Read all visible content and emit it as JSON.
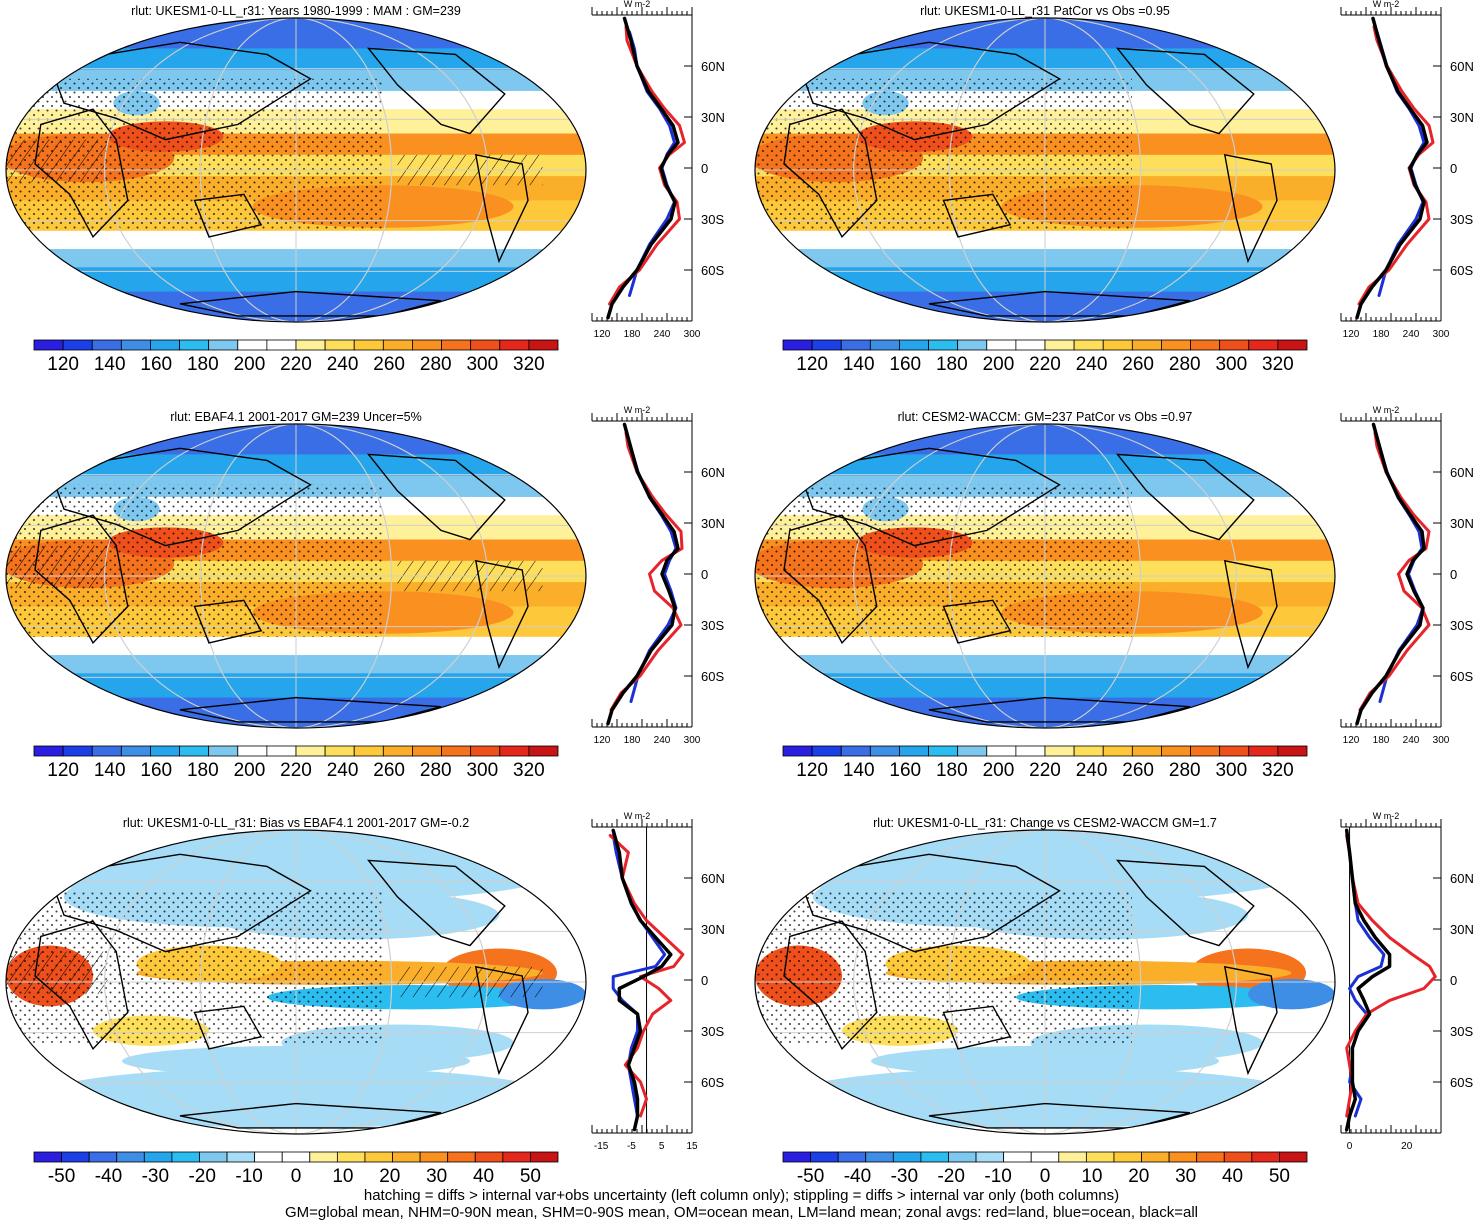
{
  "colors": {
    "warm_scale": [
      "#2a1fe0",
      "#1d3fe8",
      "#3a6ee6",
      "#3f8ee6",
      "#25a5ec",
      "#2bbcf0",
      "#7ec8f0",
      "#ffffff",
      "#ffffff",
      "#fff09a",
      "#fedf5c",
      "#fdc83a",
      "#fbae2a",
      "#f99020",
      "#f4731c",
      "#ee4f1b",
      "#e4281b",
      "#c81414"
    ],
    "diff_scale": [
      "#2a1fe0",
      "#1d3fe8",
      "#3a6ee6",
      "#3f8ee6",
      "#25a5ec",
      "#2bbcf0",
      "#7ec8f0",
      "#a6dcf5",
      "#ffffff",
      "#ffffff",
      "#fff09a",
      "#fedf5c",
      "#fdc83a",
      "#fbae2a",
      "#f99020",
      "#f4731c",
      "#ee4f1b",
      "#e4281b",
      "#c81414"
    ],
    "land": "#e8242b",
    "ocean": "#1a2fd6",
    "all": "#000000"
  },
  "footer": {
    "line1": "hatching = diffs > internal var+obs uncertainty (left column only); stippling = diffs > internal var only (both columns)",
    "line2": "GM=global mean, NHM=0-90N mean, SHM=0-90S mean, OM=ocean mean, LM=land mean; zonal avgs: red=land, blue=ocean, black=all"
  },
  "chart_data": [
    {
      "type": "heatmap",
      "title": "rlut: UKESM1-0-LL_r31: Years 1980-1999 : MAM : GM=239",
      "colorbar_ticks": [
        "120",
        "140",
        "160",
        "180",
        "200",
        "220",
        "240",
        "260",
        "280",
        "300",
        "320"
      ],
      "zonal_panel": {
        "unit": "W m-2",
        "x_ticks": [
          "120",
          "180",
          "240",
          "300"
        ],
        "xlim": [
          100,
          300
        ],
        "lat_ticks": [
          "60N",
          "30N",
          "0",
          "30S",
          "60S"
        ],
        "series": [
          {
            "color": "ocean",
            "lat": [
              80,
              70,
              60,
              45,
              35,
              25,
              15,
              8,
              0,
              -10,
              -20,
              -30,
              -45,
              -60,
              -75
            ],
            "values": [
              175,
              185,
              190,
              210,
              235,
              255,
              265,
              250,
              240,
              250,
              265,
              250,
              215,
              190,
              175
            ]
          },
          {
            "color": "land",
            "lat": [
              83,
              75,
              60,
              45,
              35,
              25,
              15,
              8,
              0,
              -10,
              -20,
              -30,
              -45,
              -60,
              -70,
              -80
            ],
            "values": [
              168,
              170,
              190,
              220,
              245,
              275,
              285,
              255,
              235,
              245,
              270,
              275,
              230,
              195,
              155,
              135
            ]
          },
          {
            "color": "all",
            "lat": [
              88,
              75,
              60,
              45,
              35,
              25,
              15,
              8,
              0,
              -10,
              -20,
              -30,
              -45,
              -60,
              -70,
              -80,
              -88
            ],
            "values": [
              165,
              178,
              190,
              213,
              238,
              262,
              272,
              252,
              238,
              248,
              266,
              258,
              218,
              190,
              162,
              140,
              132
            ]
          }
        ]
      }
    },
    {
      "type": "heatmap",
      "title": "rlut: UKESM1-0-LL_r31 PatCor vs Obs =0.95",
      "colorbar_ticks": [
        "120",
        "140",
        "160",
        "180",
        "200",
        "220",
        "240",
        "260",
        "280",
        "300",
        "320"
      ],
      "zonal_panel": {
        "unit": "W m-2",
        "x_ticks": [
          "120",
          "180",
          "240",
          "300"
        ],
        "xlim": [
          100,
          300
        ],
        "lat_ticks": [
          "60N",
          "30N",
          "0",
          "30S",
          "60S"
        ],
        "series": [
          {
            "color": "ocean",
            "lat": [
              80,
              70,
              60,
              45,
              35,
              25,
              15,
              8,
              0,
              -10,
              -20,
              -30,
              -45,
              -60,
              -75
            ],
            "values": [
              172,
              182,
              192,
              212,
              236,
              256,
              266,
              252,
              240,
              250,
              264,
              250,
              214,
              190,
              176
            ]
          },
          {
            "color": "land",
            "lat": [
              83,
              75,
              60,
              45,
              35,
              25,
              15,
              8,
              0,
              -10,
              -20,
              -30,
              -45,
              -60,
              -70,
              -80
            ],
            "values": [
              166,
              172,
              192,
              222,
              246,
              276,
              284,
              256,
              236,
              246,
              270,
              276,
              232,
              196,
              156,
              136
            ]
          },
          {
            "color": "all",
            "lat": [
              88,
              75,
              60,
              45,
              35,
              25,
              15,
              8,
              0,
              -10,
              -20,
              -30,
              -45,
              -60,
              -70,
              -80,
              -88
            ],
            "values": [
              164,
              176,
              191,
              214,
              238,
              263,
              272,
              253,
              238,
              248,
              266,
              258,
              218,
              190,
              162,
              140,
              132
            ]
          }
        ]
      }
    },
    {
      "type": "heatmap",
      "title": "rlut: EBAF4.1 2001-2017 GM=239 Uncer=5%",
      "colorbar_ticks": [
        "120",
        "140",
        "160",
        "180",
        "200",
        "220",
        "240",
        "260",
        "280",
        "300",
        "320"
      ],
      "zonal_panel": {
        "unit": "W m-2",
        "x_ticks": [
          "120",
          "180",
          "240",
          "300"
        ],
        "xlim": [
          100,
          300
        ],
        "lat_ticks": [
          "60N",
          "30N",
          "0",
          "30S",
          "60S"
        ],
        "series": [
          {
            "color": "ocean",
            "lat": [
              80,
              70,
              60,
              45,
              35,
              25,
              15,
              8,
              0,
              -10,
              -20,
              -30,
              -45,
              -60,
              -75
            ],
            "values": [
              170,
              182,
              192,
              215,
              238,
              258,
              268,
              255,
              245,
              258,
              268,
              252,
              215,
              192,
              178
            ]
          },
          {
            "color": "land",
            "lat": [
              83,
              75,
              60,
              45,
              35,
              25,
              15,
              8,
              0,
              -10,
              -20,
              -30,
              -45,
              -60,
              -70,
              -80
            ],
            "values": [
              168,
              172,
              190,
              222,
              248,
              278,
              280,
              240,
              215,
              225,
              262,
              278,
              232,
              196,
              158,
              138
            ]
          },
          {
            "color": "all",
            "lat": [
              88,
              75,
              60,
              45,
              35,
              25,
              15,
              8,
              0,
              -10,
              -20,
              -30,
              -45,
              -60,
              -70,
              -80,
              -88
            ],
            "values": [
              165,
              177,
              191,
              216,
              240,
              264,
              272,
              250,
              240,
              254,
              266,
              260,
              218,
              190,
              162,
              140,
              132
            ]
          }
        ]
      }
    },
    {
      "type": "heatmap",
      "title": "rlut: CESM2-WACCM: GM=237 PatCor vs Obs =0.97",
      "colorbar_ticks": [
        "120",
        "140",
        "160",
        "180",
        "200",
        "220",
        "240",
        "260",
        "280",
        "300",
        "320"
      ],
      "zonal_panel": {
        "unit": "W m-2",
        "x_ticks": [
          "120",
          "180",
          "240",
          "300"
        ],
        "xlim": [
          100,
          300
        ],
        "lat_ticks": [
          "60N",
          "30N",
          "0",
          "30S",
          "60S"
        ],
        "series": [
          {
            "color": "ocean",
            "lat": [
              80,
              70,
              60,
              45,
              35,
              25,
              15,
              8,
              0,
              -10,
              -20,
              -30,
              -45,
              -60,
              -75
            ],
            "values": [
              172,
              182,
              192,
              214,
              236,
              256,
              262,
              246,
              235,
              248,
              264,
              252,
              216,
              192,
              178
            ]
          },
          {
            "color": "land",
            "lat": [
              83,
              75,
              60,
              45,
              35,
              25,
              15,
              8,
              0,
              -10,
              -20,
              -30,
              -45,
              -60,
              -70,
              -80
            ],
            "values": [
              168,
              172,
              190,
              220,
              245,
              276,
              270,
              236,
              215,
              226,
              262,
              276,
              232,
              196,
              158,
              138
            ]
          },
          {
            "color": "all",
            "lat": [
              88,
              75,
              60,
              45,
              35,
              25,
              15,
              8,
              0,
              -10,
              -20,
              -30,
              -45,
              -60,
              -70,
              -80,
              -88
            ],
            "values": [
              165,
              177,
              191,
              215,
              238,
              262,
              266,
              244,
              232,
              246,
              264,
              258,
              218,
              190,
              162,
              140,
              132
            ]
          }
        ]
      }
    },
    {
      "type": "heatmap",
      "title": "rlut: UKESM1-0-LL_r31: Bias vs EBAF4.1 2001-2017 GM=-0.2",
      "colorbar_ticks": [
        "-50",
        "-40",
        "-30",
        "-20",
        "-10",
        "0",
        "10",
        "20",
        "30",
        "40",
        "50"
      ],
      "zonal_panel": {
        "unit": "W m-2",
        "x_ticks": [
          "-15",
          "-5",
          "5",
          "15"
        ],
        "xlim": [
          -18,
          15
        ],
        "lat_ticks": [
          "60N",
          "30N",
          "0",
          "30S",
          "60S"
        ],
        "series": [
          {
            "color": "ocean",
            "lat": [
              85,
              75,
              60,
              45,
              35,
              25,
              15,
              8,
              2,
              -5,
              -12,
              -20,
              -30,
              -40,
              -50,
              -60,
              -70,
              -80
            ],
            "values": [
              -11,
              -10,
              -8,
              -5,
              -2,
              2,
              6,
              3,
              -11,
              -11,
              -8,
              -3,
              -3,
              -5,
              -6,
              -5,
              -4,
              -3
            ]
          },
          {
            "color": "land",
            "lat": [
              85,
              75,
              60,
              45,
              35,
              25,
              15,
              8,
              2,
              -5,
              -12,
              -20,
              -30,
              -40,
              -50,
              -60,
              -70,
              -80
            ],
            "values": [
              -12,
              -6,
              -8,
              -4,
              0,
              6,
              12,
              9,
              -2,
              4,
              8,
              2,
              -1,
              -3,
              -7,
              -2,
              0,
              -2
            ]
          },
          {
            "color": "all",
            "lat": [
              88,
              75,
              60,
              45,
              35,
              25,
              15,
              8,
              2,
              -5,
              -12,
              -20,
              -30,
              -40,
              -50,
              -60,
              -70,
              -80,
              -88
            ],
            "values": [
              -11,
              -9,
              -8,
              -5,
              -2,
              3,
              8,
              5,
              -1,
              -9,
              -9,
              -3,
              -2,
              -4,
              -6,
              -4,
              -3,
              -3,
              -4
            ]
          }
        ]
      }
    },
    {
      "type": "heatmap",
      "title": "rlut: UKESM1-0-LL_r31: Change vs CESM2-WACCM GM=1.7",
      "colorbar_ticks": [
        "-50",
        "-40",
        "-30",
        "-20",
        "-10",
        "0",
        "10",
        "20",
        "30",
        "40",
        "50"
      ],
      "zonal_panel": {
        "unit": "W m-2",
        "x_ticks": [
          "0",
          "20"
        ],
        "xlim": [
          -3,
          32
        ],
        "lat_ticks": [
          "60N",
          "30N",
          "0",
          "30S",
          "60S"
        ],
        "series": [
          {
            "color": "ocean",
            "lat": [
              85,
              75,
              60,
              45,
              35,
              25,
              15,
              8,
              2,
              -5,
              -12,
              -20,
              -30,
              -40,
              -50,
              -60,
              -70,
              -80
            ],
            "values": [
              -1,
              0,
              1,
              2,
              3,
              7,
              12,
              11,
              3,
              0,
              2,
              6,
              3,
              1,
              1,
              0,
              4,
              2
            ]
          },
          {
            "color": "land",
            "lat": [
              85,
              75,
              60,
              45,
              35,
              25,
              15,
              8,
              2,
              -5,
              -12,
              -20,
              -30,
              -40,
              -50,
              -60,
              -70,
              -80
            ],
            "values": [
              -1,
              0,
              1,
              3,
              8,
              14,
              22,
              28,
              30,
              26,
              14,
              6,
              2,
              -1,
              0,
              1,
              0,
              -1
            ]
          },
          {
            "color": "all",
            "lat": [
              88,
              75,
              60,
              45,
              35,
              25,
              15,
              8,
              2,
              -5,
              -12,
              -20,
              -30,
              -40,
              -50,
              -60,
              -70,
              -80,
              -88
            ],
            "values": [
              -1,
              0,
              1,
              2,
              5,
              9,
              14,
              14,
              8,
              3,
              5,
              7,
              3,
              1,
              1,
              1,
              2,
              0,
              -1
            ]
          }
        ]
      }
    }
  ]
}
